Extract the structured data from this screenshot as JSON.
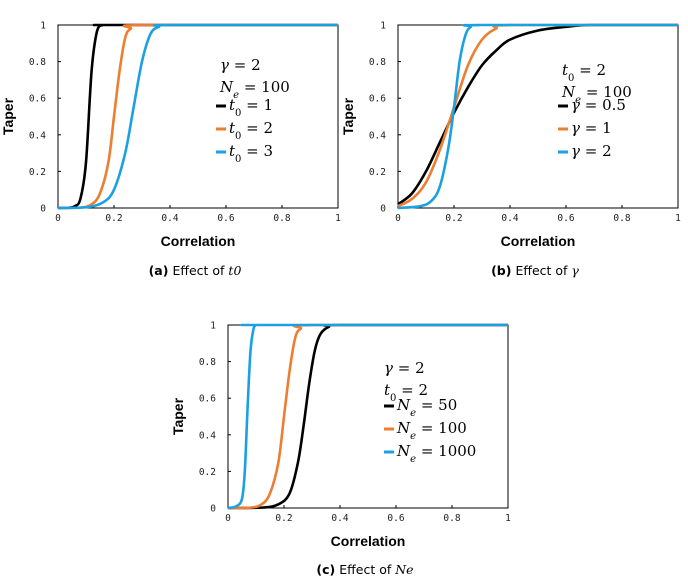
{
  "chart_data": [
    {
      "type": "line",
      "xlabel": "Correlation",
      "ylabel": "Taper",
      "xlim": [
        0,
        1
      ],
      "ylim": [
        0,
        1
      ],
      "xticks": [
        "0",
        "0.2",
        "0.4",
        "0.6",
        "0.8",
        "1"
      ],
      "yticks": [
        "0",
        "0.2",
        "0.4",
        "0.6",
        "0.8",
        "1"
      ],
      "annotations": [
        "γ = 2",
        "Ne = 100"
      ],
      "legend": "inside right",
      "series": [
        {
          "name": "t0 = 1",
          "color": "#000000",
          "x": [
            0,
            0.04,
            0.06,
            0.08,
            0.1,
            0.12,
            0.14,
            0.16,
            0.2,
            1
          ],
          "y": [
            0,
            0.002,
            0.01,
            0.05,
            0.25,
            0.75,
            0.97,
            1.0,
            1.0,
            1.0
          ]
        },
        {
          "name": "t0 = 2",
          "color": "#ED7D31",
          "x": [
            0,
            0.08,
            0.12,
            0.15,
            0.18,
            0.2,
            0.22,
            0.24,
            0.26,
            0.3,
            1
          ],
          "y": [
            0,
            0.002,
            0.02,
            0.08,
            0.25,
            0.5,
            0.75,
            0.93,
            0.98,
            1.0,
            1.0
          ]
        },
        {
          "name": "t0 = 3",
          "color": "#1BA1E2",
          "x": [
            0,
            0.1,
            0.16,
            0.2,
            0.24,
            0.27,
            0.3,
            0.33,
            0.36,
            0.4,
            1
          ],
          "y": [
            0,
            0.004,
            0.03,
            0.1,
            0.3,
            0.55,
            0.8,
            0.95,
            0.99,
            1.0,
            1.0
          ]
        }
      ]
    },
    {
      "type": "line",
      "xlabel": "Correlation",
      "ylabel": "Taper",
      "xlim": [
        0,
        1
      ],
      "ylim": [
        0,
        1
      ],
      "xticks": [
        "0",
        "0.2",
        "0.4",
        "0.6",
        "0.8",
        "1"
      ],
      "yticks": [
        "0",
        "0.2",
        "0.4",
        "0.6",
        "0.8",
        "1"
      ],
      "annotations": [
        "t0 = 2",
        "Ne = 100"
      ],
      "legend": "inside right",
      "series": [
        {
          "name": "γ = 0.5",
          "color": "#000000",
          "x": [
            0,
            0.05,
            0.1,
            0.15,
            0.2,
            0.25,
            0.3,
            0.35,
            0.4,
            0.5,
            0.6,
            0.7,
            1
          ],
          "y": [
            0.02,
            0.08,
            0.2,
            0.36,
            0.52,
            0.66,
            0.78,
            0.86,
            0.92,
            0.97,
            0.99,
            1.0,
            1.0
          ]
        },
        {
          "name": "γ = 1",
          "color": "#ED7D31",
          "x": [
            0,
            0.05,
            0.1,
            0.15,
            0.2,
            0.25,
            0.3,
            0.35,
            0.4,
            1
          ],
          "y": [
            0.01,
            0.05,
            0.14,
            0.32,
            0.55,
            0.78,
            0.92,
            0.98,
            1.0,
            1.0
          ]
        },
        {
          "name": "γ = 2",
          "color": "#1BA1E2",
          "x": [
            0,
            0.08,
            0.12,
            0.15,
            0.18,
            0.2,
            0.22,
            0.24,
            0.26,
            0.3,
            1
          ],
          "y": [
            0,
            0.01,
            0.04,
            0.12,
            0.33,
            0.55,
            0.8,
            0.94,
            0.99,
            1.0,
            1.0
          ]
        }
      ]
    },
    {
      "type": "line",
      "xlabel": "Correlation",
      "ylabel": "Taper",
      "xlim": [
        0,
        1
      ],
      "ylim": [
        0,
        1
      ],
      "xticks": [
        "0",
        "0.2",
        "0.4",
        "0.6",
        "0.8",
        "1"
      ],
      "yticks": [
        "0",
        "0.2",
        "0.4",
        "0.6",
        "0.8",
        "1"
      ],
      "annotations": [
        "γ = 2",
        "t0 = 2"
      ],
      "legend": "inside right",
      "series": [
        {
          "name": "Ne = 50",
          "color": "#000000",
          "x": [
            0,
            0.12,
            0.18,
            0.22,
            0.25,
            0.27,
            0.29,
            0.31,
            0.33,
            0.36,
            0.4,
            1
          ],
          "y": [
            0,
            0.002,
            0.02,
            0.08,
            0.25,
            0.45,
            0.68,
            0.86,
            0.95,
            0.99,
            1.0,
            1.0
          ]
        },
        {
          "name": "Ne = 100",
          "color": "#ED7D31",
          "x": [
            0,
            0.08,
            0.12,
            0.15,
            0.18,
            0.2,
            0.22,
            0.24,
            0.26,
            0.3,
            1
          ],
          "y": [
            0,
            0.002,
            0.02,
            0.08,
            0.25,
            0.5,
            0.75,
            0.93,
            0.98,
            1.0,
            1.0
          ]
        },
        {
          "name": "Ne = 1000",
          "color": "#1BA1E2",
          "x": [
            0,
            0.03,
            0.05,
            0.06,
            0.07,
            0.08,
            0.09,
            0.1,
            0.12,
            1
          ],
          "y": [
            0,
            0.01,
            0.05,
            0.2,
            0.55,
            0.85,
            0.97,
            1.0,
            1.0,
            1.0
          ]
        }
      ]
    }
  ],
  "captions": [
    {
      "label": "(a)",
      "text": "Effect of ",
      "symbol": "t0"
    },
    {
      "label": "(b)",
      "text": "Effect of ",
      "symbol": "γ"
    },
    {
      "label": "(c)",
      "text": "Effect of ",
      "symbol": "Ne"
    }
  ]
}
